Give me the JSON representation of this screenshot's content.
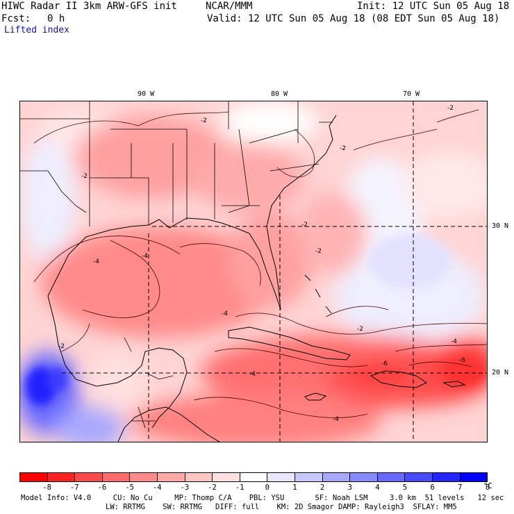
{
  "header": {
    "title": "HIWC Radar II 3km ARW-GFS init",
    "org": "NCAR/MMM",
    "init": "Init: 12 UTC Sun 05 Aug 18",
    "fcst_label": "Fcst:",
    "fcst_value": "0 h",
    "valid": "Valid: 12 UTC Sun 05 Aug 18 (08 EDT Sun 05 Aug 18)",
    "field": "Lifted index"
  },
  "axes": {
    "lon_ticks": [
      "90 W",
      "80 W",
      "70 W"
    ],
    "lat_ticks": [
      "30 N",
      "20 N"
    ]
  },
  "contour_labels": [
    "-2",
    "-4",
    "-6"
  ],
  "colorbar": {
    "colors": [
      "#ff0000",
      "#ff2020",
      "#ff4848",
      "#ff6a6a",
      "#ff8a8a",
      "#ffa8a8",
      "#ffc4c4",
      "#ffe0e0",
      "#ffffff",
      "#e6e6ff",
      "#c8c8ff",
      "#a8a8ff",
      "#8888ff",
      "#6868ff",
      "#4848ff",
      "#2424ff",
      "#0000ff"
    ],
    "labels": [
      "-8",
      "-7",
      "-6",
      "-5",
      "-4",
      "-3",
      "-2",
      "-1",
      "0",
      "1",
      "2",
      "3",
      "4",
      "5",
      "6",
      "7",
      "8"
    ],
    "unit": "°C"
  },
  "model_info": {
    "line1": "Model Info: V4.0     CU: No Cu     MP: Thomp C/A    PBL: YSU       SF: Noah LSM     3.0 km  51 levels   12 sec",
    "line2": "LW: RRTMG    SW: RRTMG   DIFF: full    KM: 2D Smagor DAMP: Rayleigh3  SFLAY: MM5"
  }
}
